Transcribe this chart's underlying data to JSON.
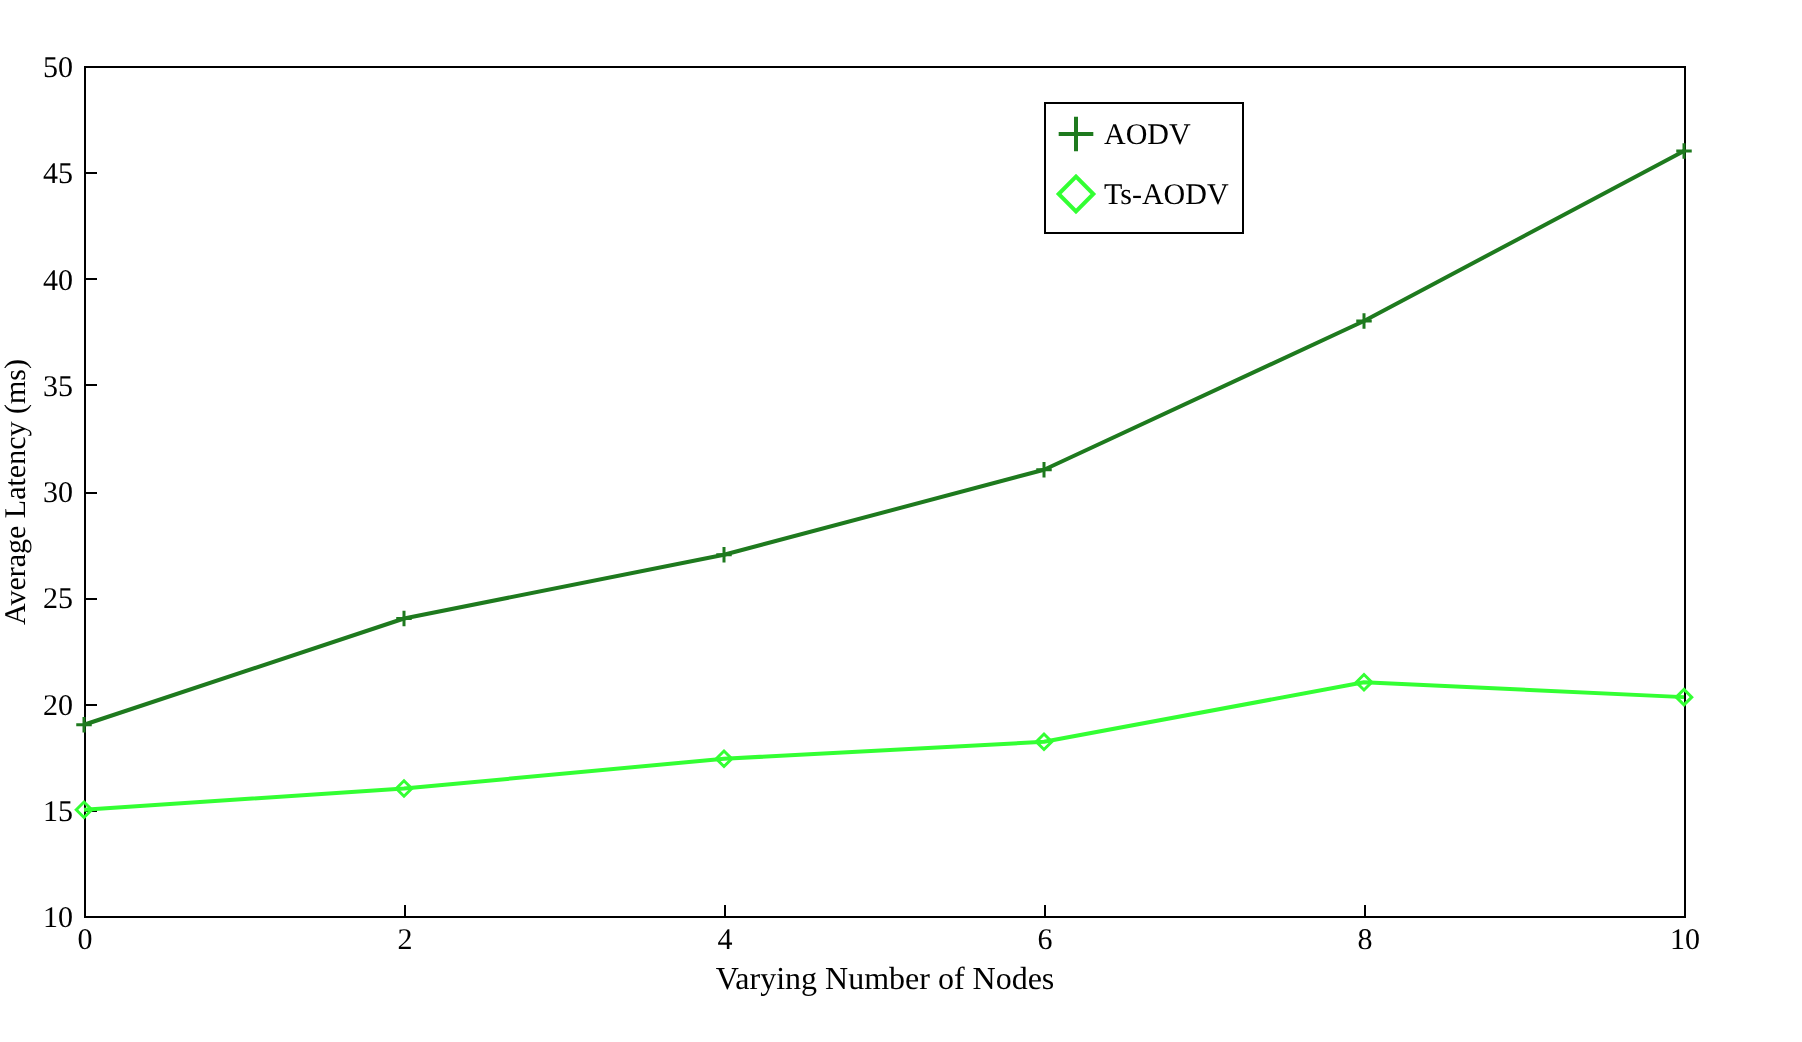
{
  "chart_data": {
    "type": "line",
    "xlabel": "Varying Number of Nodes",
    "ylabel": "Average Latency (ms)",
    "x": [
      0,
      2,
      4,
      6,
      8,
      10
    ],
    "series": [
      {
        "name": "AODV",
        "color": "#1e7a1e",
        "marker": "cross",
        "values": [
          19,
          24,
          27,
          31,
          38,
          46
        ]
      },
      {
        "name": "Ts-AODV",
        "color": "#33ff33",
        "marker": "diamond",
        "values": [
          15,
          16,
          17.4,
          18.2,
          21,
          20.3
        ]
      }
    ],
    "xlim": [
      0,
      10
    ],
    "xticks": [
      0,
      2,
      4,
      6,
      8,
      10
    ],
    "ylim": [
      10,
      50
    ],
    "yticks": [
      10,
      15,
      20,
      25,
      30,
      35,
      40,
      45,
      50
    ],
    "grid": false,
    "legend": "top right",
    "line_style": "solid"
  }
}
